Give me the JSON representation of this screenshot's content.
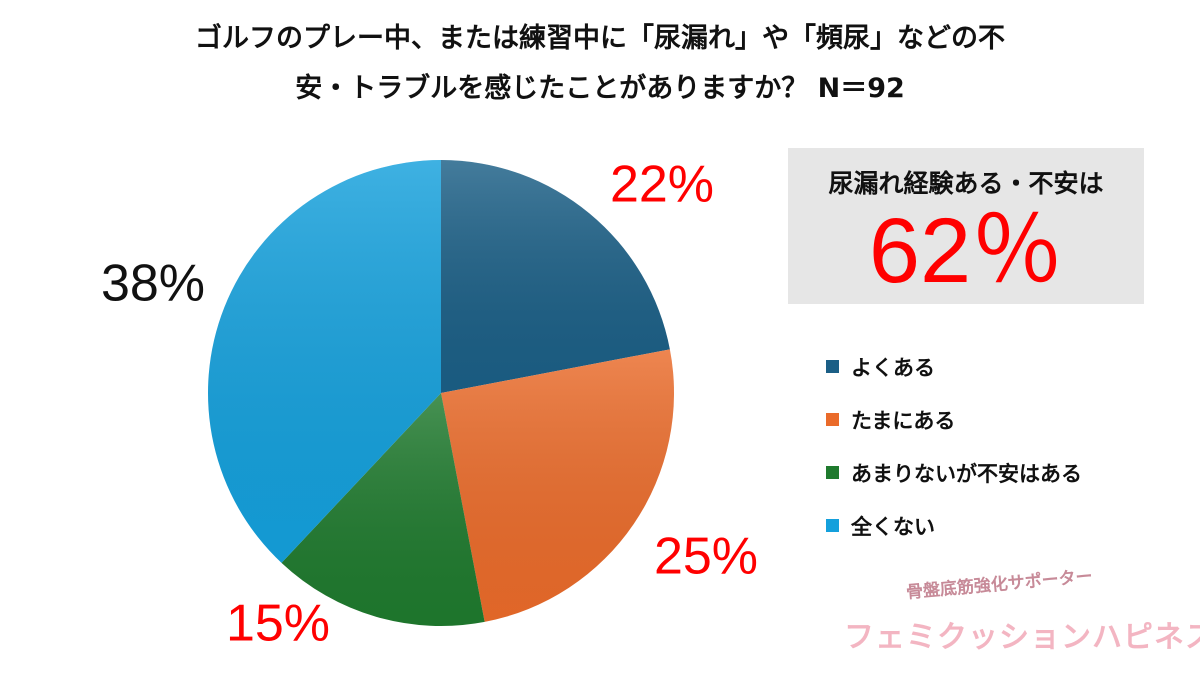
{
  "title": {
    "line1": "ゴルフのプレー中、または練習中に「尿漏れ」や「頻尿」などの不",
    "line2": "安・トラブルを感じたことがありますか？ N＝92"
  },
  "chart_data": {
    "type": "pie",
    "categories": [
      "よくある",
      "たまにある",
      "あまりないが不安はある",
      "全くない"
    ],
    "values": [
      22,
      25,
      15,
      38
    ],
    "labels": [
      "22%",
      "25%",
      "15%",
      "38%"
    ],
    "colors": [
      "#1b5f86",
      "#ea6b2a",
      "#1f7a2e",
      "#14a0dc"
    ],
    "label_colors": [
      "#ff0000",
      "#ff0000",
      "#ff0000",
      "#111111"
    ],
    "start": "12 o'clock, clockwise",
    "legend": "right"
  },
  "summary": {
    "label": "尿漏れ経験ある・不安は",
    "value": "62％",
    "value_color": "#ff0000"
  },
  "watermark": {
    "subtitle": "骨盤底筋強化サポーター",
    "brand": "フェミクッションハピネス"
  }
}
